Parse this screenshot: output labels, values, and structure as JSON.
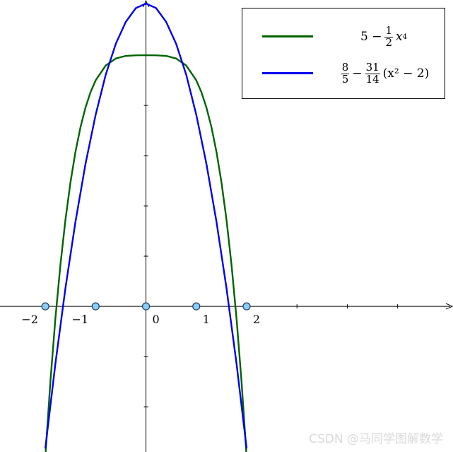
{
  "chart_data": {
    "type": "line",
    "xlim": [
      -2.9,
      6.1
    ],
    "ylim": [
      -2.9,
      6.1
    ],
    "grid": false,
    "legend_position": "top-right",
    "x_ticks": [
      -2,
      -1,
      0,
      1,
      2
    ],
    "x_tick_labels": [
      "−2",
      "−1",
      "0",
      "1",
      "2"
    ],
    "y_ticks": [
      -2,
      -1,
      1,
      2,
      3,
      4,
      5
    ],
    "series": [
      {
        "name": "5 − ½ x⁴",
        "color": "#006400",
        "formula": {
          "a": "5 −",
          "num": "1",
          "den": "2",
          "var": "x",
          "exp": "4"
        },
        "x": [
          -2,
          -1.9,
          -1.8,
          -1.7,
          -1.6,
          -1.5,
          -1.4,
          -1.3,
          -1.2,
          -1.1,
          -1.0,
          -0.8,
          -0.6,
          -0.4,
          -0.2,
          0,
          0.2,
          0.4,
          0.6,
          0.8,
          1.0,
          1.1,
          1.2,
          1.3,
          1.4,
          1.5,
          1.6,
          1.7,
          1.8,
          1.9,
          2
        ],
        "y": [
          -3.0,
          -1.516,
          -0.249,
          0.824,
          1.723,
          2.469,
          3.079,
          3.572,
          3.963,
          4.268,
          4.5,
          4.795,
          4.935,
          4.987,
          4.999,
          5.0,
          4.999,
          4.987,
          4.935,
          4.795,
          4.5,
          4.268,
          3.963,
          3.572,
          3.079,
          2.469,
          1.723,
          0.824,
          -0.249,
          -1.516,
          -3.0
        ]
      },
      {
        "name": "8/5 − 31/14 (x² − 2)",
        "color": "#0000ee",
        "formula": {
          "n1": "8",
          "d1": "5",
          "op": "−",
          "n2": "31",
          "d2": "14",
          "tail": "(x² − 2)"
        },
        "x": [
          -2,
          -1.8,
          -1.6,
          -1.4,
          -1.2,
          -1.0,
          -0.8,
          -0.6,
          -0.4,
          -0.2,
          0,
          0.2,
          0.4,
          0.6,
          0.8,
          1.0,
          1.2,
          1.4,
          1.6,
          1.8,
          2
        ],
        "y": [
          -2.829,
          -1.146,
          0.362,
          1.689,
          2.843,
          3.814,
          4.611,
          5.226,
          5.666,
          5.94,
          6.029,
          5.94,
          5.666,
          5.226,
          4.611,
          3.814,
          2.843,
          1.689,
          0.362,
          -1.146,
          -2.829
        ]
      }
    ],
    "points": {
      "x": [
        -2.0,
        -1.0,
        0.0,
        1.0,
        2.0
      ],
      "y": [
        0,
        0,
        0,
        0,
        0
      ],
      "fill": "#87cefa",
      "stroke": "#1e3a5f"
    }
  },
  "legend": {
    "entry1": {
      "a": "5 −",
      "num": "1",
      "den": "2",
      "var": "x",
      "exp": "4"
    },
    "entry2": {
      "n1": "8",
      "d1": "5",
      "op": "−",
      "n2": "31",
      "d2": "14",
      "tail": "(x² − 2)"
    }
  },
  "watermark": "CSDN @马同学图解数学"
}
